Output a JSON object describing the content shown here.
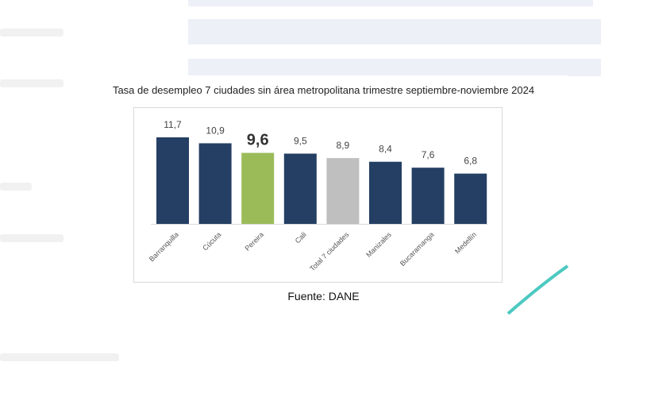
{
  "chart_data": {
    "type": "bar",
    "title": "Tasa de desempleo 7 ciudades sin área metropolitana trimestre septiembre-noviembre 2024",
    "categories": [
      "Barranquilla",
      "Cúcuta",
      "Pereira",
      "Cali",
      "Total 7 ciudades",
      "Manizales",
      "Bucaramanga",
      "Medellín"
    ],
    "values": [
      11.7,
      10.9,
      9.6,
      9.5,
      8.9,
      8.4,
      7.6,
      6.8
    ],
    "data_labels": [
      "11,7",
      "10,9",
      "9,6",
      "9,5",
      "8,9",
      "8,4",
      "7,6",
      "6,8"
    ],
    "colors": [
      "#243f63",
      "#243f63",
      "#9bbb59",
      "#243f63",
      "#bfbfbf",
      "#243f63",
      "#243f63",
      "#243f63"
    ],
    "highlight": "Pereira",
    "xlabel": "",
    "ylabel": "",
    "ylim": [
      0,
      12.5
    ],
    "grid": false,
    "legend": "none"
  },
  "source": "Fuente: DANE"
}
